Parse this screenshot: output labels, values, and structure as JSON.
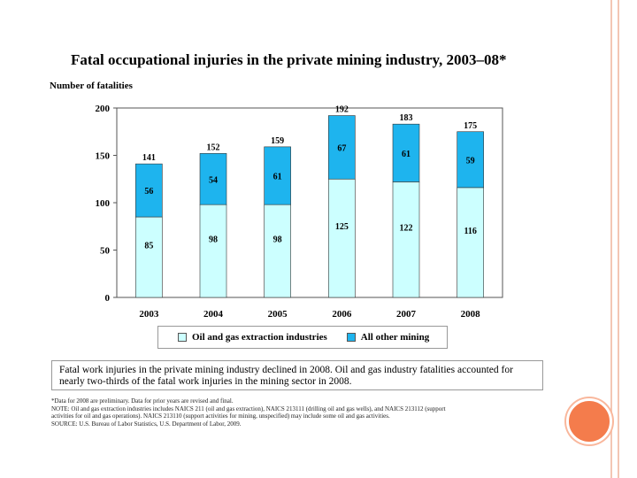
{
  "slide": {
    "accent_color": "#f47c4c",
    "frame_color": "#f3c6b4"
  },
  "chart_data": {
    "type": "bar",
    "stacked": true,
    "title": "Fatal occupational injuries in the private mining industry, 2003–08*",
    "ylabel": "Number of fatalities",
    "xlabel": "",
    "categories": [
      "2003",
      "2004",
      "2005",
      "2006",
      "2007",
      "2008"
    ],
    "ylim": [
      0,
      200
    ],
    "yticks": [
      0,
      50,
      100,
      150,
      200
    ],
    "totals": [
      141,
      152,
      159,
      192,
      183,
      175
    ],
    "series": [
      {
        "name": "Oil and gas extraction industries",
        "values": [
          85,
          98,
          98,
          125,
          122,
          116
        ],
        "color": "#ccffff"
      },
      {
        "name": "All other mining",
        "values": [
          56,
          54,
          61,
          67,
          61,
          59
        ],
        "color": "#1eb4ee"
      }
    ],
    "legend": "bottom",
    "grid": false
  },
  "summary": "Fatal work injuries in the private mining industry declined in 2008. Oil and gas industry fatalities accounted for nearly two-thirds of the fatal work injuries in the mining sector in 2008.",
  "notes": [
    "*Data for 2008 are preliminary. Data for prior years are revised and final.",
    "NOTE: Oil and gas extraction industries includes NAICS 211 (oil and gas extraction), NAICS 213111 (drilling oil and gas wells), and NAICS 213112 (support",
    "activities for oil and gas operations). NAICS 213110 (support activities for mining, unspecified) may include some oil and gas activities.",
    "SOURCE: U.S. Bureau of Labor Statistics, U.S. Department of Labor, 2009."
  ]
}
